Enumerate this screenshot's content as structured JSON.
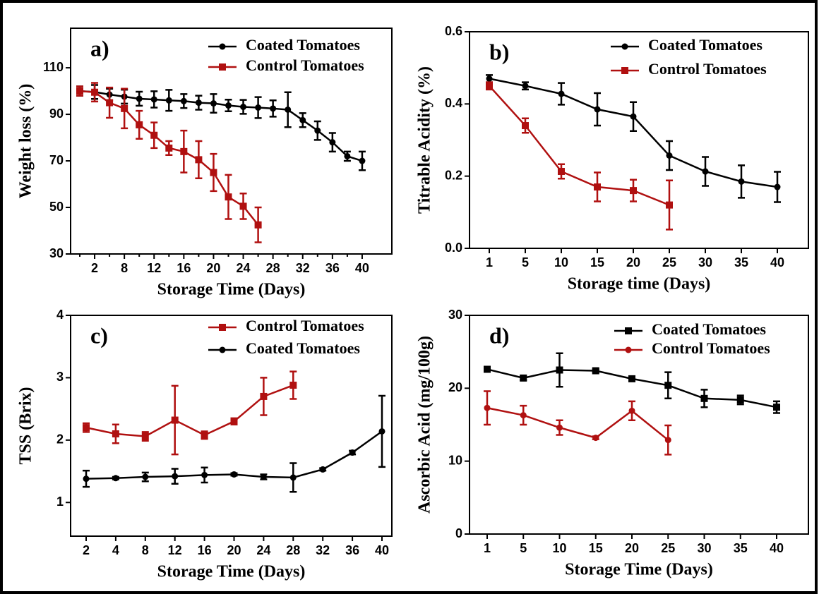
{
  "chart_data": [
    {
      "type": "line",
      "label": "a)",
      "xlabel": "Storage Time (Days)",
      "ylabel": "Weight loss (%)",
      "categories": [
        null,
        2,
        null,
        8,
        null,
        12,
        null,
        16,
        null,
        20,
        null,
        24,
        null,
        28,
        null,
        32,
        null,
        36,
        null,
        40
      ],
      "ylim": [
        30,
        127
      ],
      "yticks": [
        30,
        50,
        70,
        90,
        110
      ],
      "legend": "upper right",
      "series": [
        {
          "name": "Coated Tomatoes",
          "color": "#000000",
          "marker": "circle",
          "values": [
            100,
            99.6,
            98.5,
            97.6,
            96.7,
            96.4,
            96,
            95.7,
            95,
            94.7,
            93.8,
            93.2,
            92.9,
            92.5,
            92,
            87.5,
            83,
            78,
            72,
            70
          ],
          "errors": [
            2,
            3,
            2.5,
            3,
            3,
            3.5,
            4.5,
            3,
            3,
            4,
            2.5,
            3,
            4.5,
            3.5,
            7.5,
            3,
            4,
            4,
            2,
            4
          ]
        },
        {
          "name": "Control Tomatoes",
          "color": "#b01010",
          "marker": "square",
          "values": [
            100,
            99.5,
            95,
            92.5,
            85.5,
            81,
            75.5,
            74,
            70.5,
            65,
            54.5,
            50.5,
            42.5,
            null,
            null,
            null,
            null,
            null,
            null,
            null
          ],
          "errors": [
            2,
            4,
            6.5,
            8.5,
            6,
            5.5,
            3,
            9,
            8,
            8,
            9.5,
            5.5,
            7.5,
            null,
            null,
            null,
            null,
            null,
            null,
            null
          ]
        }
      ]
    },
    {
      "type": "line",
      "label": "b)",
      "xlabel": "Storage time (Days)",
      "ylabel": "Titrable Acidity (%)",
      "categories": [
        1,
        5,
        10,
        15,
        20,
        25,
        30,
        35,
        40
      ],
      "ylim": [
        0,
        0.6
      ],
      "yticks": [
        {
          "value": 0,
          "label": "0.0"
        },
        0.2,
        0.4,
        0.6
      ],
      "legend": "upper right",
      "series": [
        {
          "name": "Coated Tomatoes",
          "color": "#000000",
          "marker": "circle",
          "values": [
            0.47,
            0.45,
            0.428,
            0.385,
            0.365,
            0.257,
            0.213,
            0.185,
            0.17
          ],
          "errors": [
            0.01,
            0.01,
            0.03,
            0.045,
            0.04,
            0.04,
            0.04,
            0.045,
            0.042
          ]
        },
        {
          "name": "Control Tomatoes",
          "color": "#b01010",
          "marker": "square",
          "values": [
            0.45,
            0.34,
            0.213,
            0.17,
            0.16,
            0.12,
            null,
            null,
            null
          ],
          "errors": [
            0.01,
            0.02,
            0.02,
            0.04,
            0.03,
            0.068,
            null,
            null,
            null
          ]
        }
      ]
    },
    {
      "type": "line",
      "label": "c)",
      "xlabel": "Storage Time (Days)",
      "ylabel": "TSS (Brix)",
      "categories": [
        2,
        4,
        8,
        12,
        16,
        20,
        24,
        28,
        32,
        36,
        40
      ],
      "ylim": [
        0.46,
        4
      ],
      "yticks": [
        1,
        2,
        3,
        4
      ],
      "legend": "upper right",
      "series": [
        {
          "name": "Control Tomatoes",
          "color": "#b01010",
          "marker": "square",
          "values": [
            2.2,
            2.1,
            2.06,
            2.32,
            2.08,
            2.3,
            2.7,
            2.88,
            null,
            null,
            null
          ],
          "errors": [
            0.07,
            0.15,
            0.07,
            0.55,
            0.06,
            0.05,
            0.3,
            0.22,
            null,
            null,
            null
          ]
        },
        {
          "name": "Coated Tomatoes",
          "color": "#000000",
          "marker": "circle",
          "values": [
            1.38,
            1.39,
            1.41,
            1.42,
            1.44,
            1.45,
            1.41,
            1.4,
            1.53,
            1.8,
            2.14
          ],
          "errors": [
            0.13,
            0.02,
            0.07,
            0.12,
            0.12,
            0.02,
            0.04,
            0.23,
            0.02,
            0.03,
            0.57
          ]
        }
      ]
    },
    {
      "type": "line",
      "label": "d)",
      "xlabel": "Storage Time (Days)",
      "ylabel": "Ascorbic Acid (mg/100g)",
      "categories": [
        1,
        5,
        10,
        15,
        20,
        25,
        30,
        35,
        40
      ],
      "ylim": [
        0,
        30
      ],
      "yticks": [
        0,
        10,
        20,
        30
      ],
      "legend": "upper right",
      "series": [
        {
          "name": "Coated Tomatoes",
          "color": "#000000",
          "marker": "square",
          "values": [
            22.6,
            21.4,
            22.5,
            22.4,
            21.3,
            20.4,
            18.6,
            18.4,
            17.4
          ],
          "errors": [
            0.3,
            0.3,
            2.3,
            0.2,
            0.2,
            1.8,
            1.2,
            0.6,
            0.8
          ]
        },
        {
          "name": "Control Tomatoes",
          "color": "#b01010",
          "marker": "circle",
          "values": [
            17.3,
            16.3,
            14.6,
            13.2,
            16.9,
            12.9,
            null,
            null,
            null
          ],
          "errors": [
            2.3,
            1.3,
            1,
            0.2,
            1.3,
            2,
            null,
            null,
            null
          ]
        }
      ]
    }
  ]
}
